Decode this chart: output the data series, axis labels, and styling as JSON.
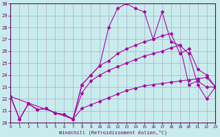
{
  "xlabel": "Windchill (Refroidissement éolien,°C)",
  "bg_color": "#c8ecec",
  "line_color": "#aa00aa",
  "grid_color": "#aaaacc",
  "ylim": [
    20,
    30
  ],
  "xlim": [
    0,
    23
  ],
  "yticks": [
    20,
    21,
    22,
    23,
    24,
    25,
    26,
    27,
    28,
    29,
    30
  ],
  "xticks": [
    0,
    1,
    2,
    3,
    4,
    5,
    6,
    7,
    8,
    9,
    10,
    11,
    12,
    13,
    14,
    15,
    16,
    17,
    18,
    19,
    20,
    21,
    22,
    23
  ],
  "series1_x": [
    0,
    1,
    2,
    3,
    4,
    5,
    6,
    7,
    8,
    9,
    10,
    11,
    12,
    13,
    14,
    15,
    16,
    17,
    18,
    19,
    20,
    21,
    22,
    23
  ],
  "series1_y": [
    22.2,
    20.3,
    21.6,
    21.1,
    21.2,
    20.8,
    20.7,
    20.3,
    23.2,
    24.0,
    24.8,
    28.0,
    29.6,
    30.0,
    29.6,
    29.3,
    27.0,
    29.3,
    26.8,
    26.5,
    23.2,
    23.5,
    23.0,
    23.0
  ],
  "series2_x": [
    0,
    1,
    2,
    3,
    4,
    5,
    6,
    7,
    8,
    9,
    10,
    11,
    12,
    13,
    14,
    15,
    16,
    17,
    18,
    19,
    20,
    21,
    22,
    23
  ],
  "series2_y": [
    22.2,
    20.3,
    21.6,
    21.1,
    21.2,
    20.8,
    20.7,
    20.3,
    23.2,
    24.0,
    24.8,
    25.2,
    25.8,
    26.2,
    26.5,
    26.8,
    27.0,
    27.3,
    27.5,
    25.8,
    26.2,
    24.5,
    24.0,
    23.0
  ],
  "series3_x": [
    0,
    1,
    2,
    3,
    4,
    5,
    6,
    7,
    8,
    9,
    10,
    11,
    12,
    13,
    14,
    15,
    16,
    17,
    18,
    19,
    20,
    21,
    22,
    23
  ],
  "series3_y": [
    22.2,
    20.3,
    21.6,
    21.1,
    21.2,
    20.8,
    20.7,
    20.3,
    21.2,
    21.5,
    21.8,
    22.1,
    22.4,
    22.7,
    22.9,
    23.1,
    23.2,
    23.3,
    23.4,
    23.5,
    23.6,
    23.7,
    23.8,
    23.0
  ],
  "series4_x": [
    0,
    7,
    8,
    9,
    10,
    11,
    12,
    13,
    14,
    15,
    16,
    17,
    18,
    19,
    20,
    21,
    22,
    23
  ],
  "series4_y": [
    22.2,
    20.3,
    22.5,
    23.5,
    24.0,
    24.4,
    24.7,
    25.0,
    25.3,
    25.6,
    25.8,
    26.0,
    26.3,
    26.5,
    25.8,
    23.2,
    22.0,
    23.0
  ]
}
